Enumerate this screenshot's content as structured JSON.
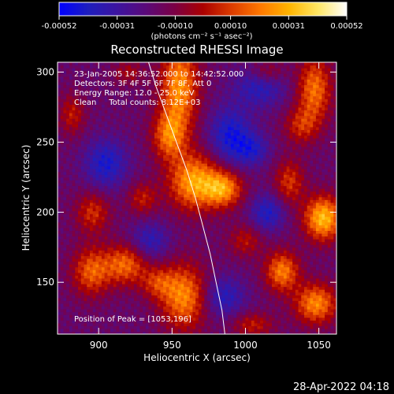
{
  "chart_data": {
    "type": "heatmap",
    "title": "Reconstructed RHESSI Image",
    "xlabel": "Heliocentric X (arcsec)",
    "ylabel": "Heliocentric Y (arcsec)",
    "xlim": [
      872,
      1062
    ],
    "ylim": [
      113,
      307
    ],
    "x_ticks": [
      900,
      950,
      1000,
      1050
    ],
    "y_ticks": [
      150,
      200,
      250,
      300
    ],
    "colorbar": {
      "min": -0.00052,
      "max": 0.00052,
      "tick_values": [
        -0.00052,
        -0.00031,
        -0.0001,
        0.0001,
        0.00031,
        0.00052
      ],
      "tick_labels": [
        "-0.00052",
        "-0.00031",
        "-0.00010",
        "0.00010",
        "0.00031",
        "0.00052"
      ],
      "units_label": "(photons cm⁻² s⁻¹ asec⁻²)",
      "colormap": [
        "#0000ff",
        "#1e1ebe",
        "#3c14a0",
        "#5a0a7a",
        "#7a0046",
        "#aa0000",
        "#dc3c00",
        "#ff7800",
        "#ffb400",
        "#ffe664",
        "#ffffff"
      ]
    },
    "annotations": {
      "time_range": "23-Jan-2005 14:36:52.000 to 14:42:52.000",
      "detectors": "Detectors: 3F 4F 5F 6F 7F 8F, Att 0",
      "energy_range": "Energy Range: 12.0 - 25.0 keV",
      "clean_counts": "Clean     Total counts: 8.12E+03",
      "peak": "Position of Peak = [1053,196]"
    },
    "peak_position": [
      1053,
      196
    ],
    "features": [
      {
        "x": 955,
        "y": 290,
        "amp": 0.00042,
        "sx": 9,
        "sy": 22
      },
      {
        "x": 965,
        "y": 222,
        "amp": 0.00045,
        "sx": 12,
        "sy": 14
      },
      {
        "x": 985,
        "y": 217,
        "amp": 0.0004,
        "sx": 9,
        "sy": 9
      },
      {
        "x": 948,
        "y": 255,
        "amp": 0.00034,
        "sx": 8,
        "sy": 12
      },
      {
        "x": 1053,
        "y": 196,
        "amp": 0.0005,
        "sx": 9,
        "sy": 11
      },
      {
        "x": 1047,
        "y": 288,
        "amp": 0.00036,
        "sx": 8,
        "sy": 16
      },
      {
        "x": 1038,
        "y": 262,
        "amp": 0.00022,
        "sx": 8,
        "sy": 9
      },
      {
        "x": 1030,
        "y": 222,
        "amp": 0.00025,
        "sx": 7,
        "sy": 11
      },
      {
        "x": 1025,
        "y": 158,
        "amp": 0.00038,
        "sx": 8,
        "sy": 10
      },
      {
        "x": 1048,
        "y": 135,
        "amp": 0.0004,
        "sx": 10,
        "sy": 10
      },
      {
        "x": 958,
        "y": 140,
        "amp": 0.0004,
        "sx": 11,
        "sy": 16
      },
      {
        "x": 940,
        "y": 150,
        "amp": 0.00022,
        "sx": 8,
        "sy": 8
      },
      {
        "x": 918,
        "y": 163,
        "amp": 0.00034,
        "sx": 10,
        "sy": 10
      },
      {
        "x": 895,
        "y": 158,
        "amp": 0.00032,
        "sx": 9,
        "sy": 12
      },
      {
        "x": 896,
        "y": 200,
        "amp": 0.00024,
        "sx": 8,
        "sy": 10
      },
      {
        "x": 930,
        "y": 210,
        "amp": 0.0002,
        "sx": 7,
        "sy": 8
      },
      {
        "x": 882,
        "y": 270,
        "amp": 0.0002,
        "sx": 6,
        "sy": 10
      },
      {
        "x": 1000,
        "y": 180,
        "amp": 0.00018,
        "sx": 8,
        "sy": 8
      },
      {
        "x": 1005,
        "y": 120,
        "amp": 0.0002,
        "sx": 10,
        "sy": 6
      },
      {
        "x": 1015,
        "y": 300,
        "amp": 0.00018,
        "sx": 8,
        "sy": 6
      },
      {
        "x": 920,
        "y": 300,
        "amp": 0.00015,
        "sx": 7,
        "sy": 6
      },
      {
        "x": 990,
        "y": 255,
        "amp": -0.00028,
        "sx": 10,
        "sy": 14
      },
      {
        "x": 1010,
        "y": 290,
        "amp": -0.00022,
        "sx": 12,
        "sy": 10
      },
      {
        "x": 905,
        "y": 235,
        "amp": -0.00026,
        "sx": 10,
        "sy": 12
      },
      {
        "x": 935,
        "y": 180,
        "amp": -0.0002,
        "sx": 9,
        "sy": 9
      },
      {
        "x": 1015,
        "y": 200,
        "amp": -0.00024,
        "sx": 8,
        "sy": 9
      },
      {
        "x": 985,
        "y": 140,
        "amp": -0.00022,
        "sx": 10,
        "sy": 10
      },
      {
        "x": 1005,
        "y": 245,
        "amp": -0.0002,
        "sx": 8,
        "sy": 8
      }
    ],
    "background_level": -0.00017,
    "limb": [
      [
        934,
        307
      ],
      [
        939,
        290
      ],
      [
        946,
        270
      ],
      [
        953,
        250
      ],
      [
        960,
        230
      ],
      [
        966,
        210
      ],
      [
        971,
        190
      ],
      [
        976,
        170
      ],
      [
        980,
        150
      ],
      [
        984,
        130
      ],
      [
        986,
        113
      ]
    ]
  },
  "footer": {
    "timestamp": "28-Apr-2022 04:18"
  }
}
